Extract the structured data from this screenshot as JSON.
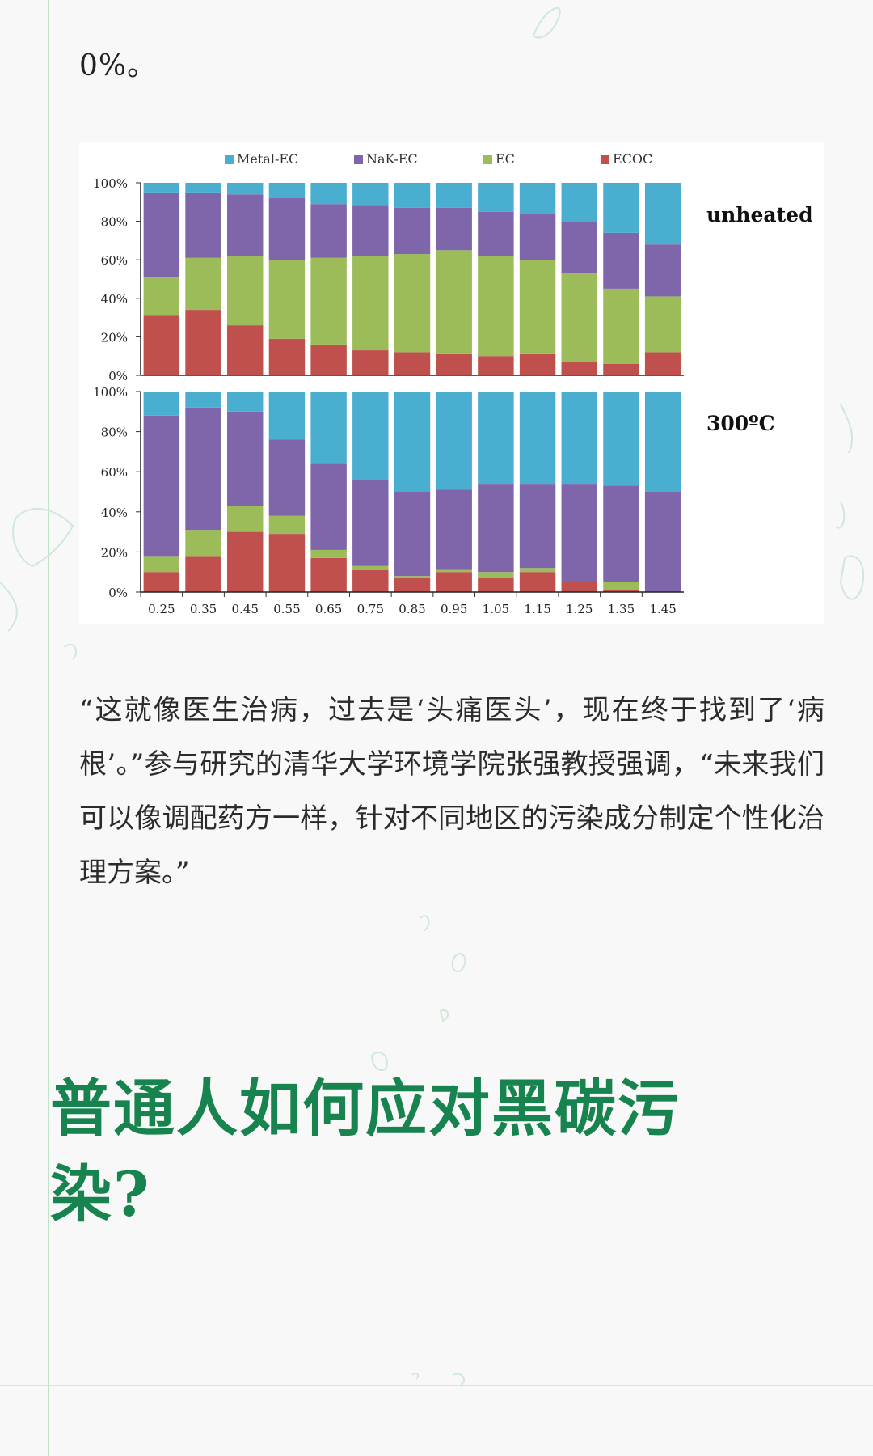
{
  "top_text": "0%。",
  "quote": "“这就像医生治病，过去是‘头痛医头’，现在终于找到了‘病根’。”参与研究的清华大学环境学院张强教授强调，“未来我们可以像调配药方一样，针对不同地区的污染成分制定个性化治理方案。”",
  "heading": "普通人如何应对黑碳污染?",
  "chart_data": {
    "type": "bar",
    "stacked": true,
    "categories": [
      "0.25",
      "0.35",
      "0.45",
      "0.55",
      "0.65",
      "0.75",
      "0.85",
      "0.95",
      "1.05",
      "1.15",
      "1.25",
      "1.35",
      "1.45"
    ],
    "ylim": [
      0,
      100
    ],
    "y_ticks": [
      "0%",
      "20%",
      "40%",
      "60%",
      "80%",
      "100%"
    ],
    "legend_position": "top",
    "legend": [
      "Metal-EC",
      "NaK-EC",
      "EC",
      "ECOC"
    ],
    "colors": {
      "Metal-EC": "#4aaed0",
      "NaK-EC": "#7f65aa",
      "EC": "#9bbc59",
      "ECOC": "#c0504d"
    },
    "panels": [
      {
        "label": "unheated",
        "series": [
          {
            "name": "ECOC",
            "values": [
              31,
              34,
              26,
              19,
              16,
              13,
              12,
              11,
              10,
              11,
              7,
              6,
              12
            ]
          },
          {
            "name": "EC",
            "values": [
              20,
              27,
              36,
              41,
              45,
              49,
              51,
              54,
              52,
              49,
              46,
              39,
              29
            ]
          },
          {
            "name": "NaK-EC",
            "values": [
              44,
              34,
              32,
              32,
              28,
              26,
              24,
              22,
              23,
              24,
              27,
              29,
              27
            ]
          },
          {
            "name": "Metal-EC",
            "values": [
              5,
              5,
              6,
              8,
              11,
              12,
              13,
              13,
              15,
              16,
              20,
              26,
              32
            ]
          }
        ]
      },
      {
        "label": "300ºC",
        "series": [
          {
            "name": "ECOC",
            "values": [
              10,
              18,
              30,
              29,
              17,
              11,
              7,
              10,
              7,
              10,
              5,
              1,
              0
            ]
          },
          {
            "name": "EC",
            "values": [
              8,
              13,
              13,
              9,
              4,
              2,
              1,
              1,
              3,
              2,
              0,
              4,
              0
            ]
          },
          {
            "name": "NaK-EC",
            "values": [
              70,
              61,
              47,
              38,
              43,
              43,
              42,
              40,
              44,
              42,
              49,
              48,
              50
            ]
          },
          {
            "name": "Metal-EC",
            "values": [
              12,
              8,
              10,
              24,
              36,
              44,
              50,
              49,
              46,
              46,
              46,
              47,
              50
            ]
          }
        ]
      }
    ]
  }
}
